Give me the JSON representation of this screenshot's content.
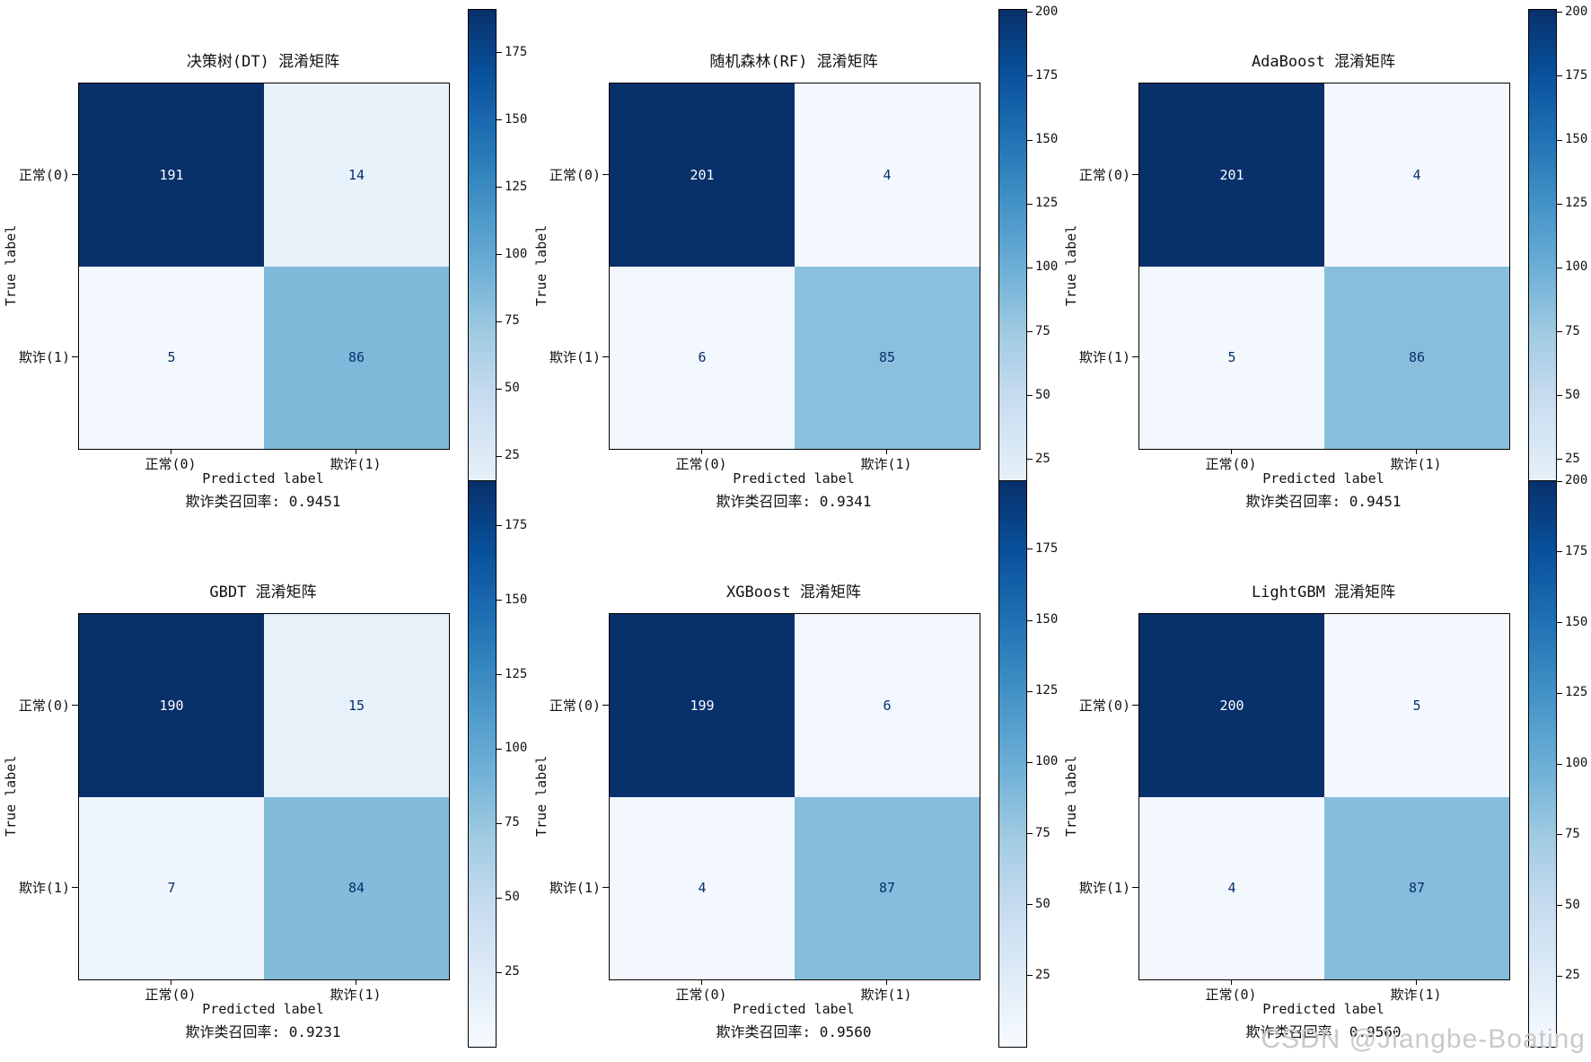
{
  "watermark": "CSDN @Jiangbe-Boating",
  "colors": {
    "cmap_low": "#f7fbff",
    "cmap_high": "#08306b",
    "cell_text_dark": "#08306b",
    "cell_text_light": "#ffffff",
    "watermark": "#c9c9c9"
  },
  "chart_data": [
    {
      "type": "heatmap",
      "title": "决策树(DT) 混淆矩阵",
      "xlabel": "Predicted label",
      "ylabel": "True label",
      "x_ticks": [
        "正常(0)",
        "欺诈(1)"
      ],
      "y_ticks": [
        "正常(0)",
        "欺诈(1)"
      ],
      "matrix": [
        [
          191,
          14
        ],
        [
          5,
          86
        ]
      ],
      "vmax": 191,
      "colorbar_ticks": [
        25,
        50,
        75,
        100,
        125,
        150,
        175
      ],
      "colormap": "Blues",
      "footnote": "欺诈类召回率: 0.9451"
    },
    {
      "type": "heatmap",
      "title": "随机森林(RF) 混淆矩阵",
      "xlabel": "Predicted label",
      "ylabel": "True label",
      "x_ticks": [
        "正常(0)",
        "欺诈(1)"
      ],
      "y_ticks": [
        "正常(0)",
        "欺诈(1)"
      ],
      "matrix": [
        [
          201,
          4
        ],
        [
          6,
          85
        ]
      ],
      "vmax": 201,
      "colorbar_ticks": [
        25,
        50,
        75,
        100,
        125,
        150,
        175,
        200
      ],
      "colormap": "Blues",
      "footnote": "欺诈类召回率: 0.9341"
    },
    {
      "type": "heatmap",
      "title": "AdaBoost 混淆矩阵",
      "xlabel": "Predicted label",
      "ylabel": "True label",
      "x_ticks": [
        "正常(0)",
        "欺诈(1)"
      ],
      "y_ticks": [
        "正常(0)",
        "欺诈(1)"
      ],
      "matrix": [
        [
          201,
          4
        ],
        [
          5,
          86
        ]
      ],
      "vmax": 201,
      "colorbar_ticks": [
        25,
        50,
        75,
        100,
        125,
        150,
        175,
        200
      ],
      "colormap": "Blues",
      "footnote": "欺诈类召回率: 0.9451"
    },
    {
      "type": "heatmap",
      "title": "GBDT 混淆矩阵",
      "xlabel": "Predicted label",
      "ylabel": "True label",
      "x_ticks": [
        "正常(0)",
        "欺诈(1)"
      ],
      "y_ticks": [
        "正常(0)",
        "欺诈(1)"
      ],
      "matrix": [
        [
          190,
          15
        ],
        [
          7,
          84
        ]
      ],
      "vmax": 190,
      "colorbar_ticks": [
        25,
        50,
        75,
        100,
        125,
        150,
        175
      ],
      "colormap": "Blues",
      "footnote": "欺诈类召回率: 0.9231"
    },
    {
      "type": "heatmap",
      "title": "XGBoost 混淆矩阵",
      "xlabel": "Predicted label",
      "ylabel": "True label",
      "x_ticks": [
        "正常(0)",
        "欺诈(1)"
      ],
      "y_ticks": [
        "正常(0)",
        "欺诈(1)"
      ],
      "matrix": [
        [
          199,
          6
        ],
        [
          4,
          87
        ]
      ],
      "vmax": 199,
      "colorbar_ticks": [
        25,
        50,
        75,
        100,
        125,
        150,
        175
      ],
      "colormap": "Blues",
      "footnote": "欺诈类召回率: 0.9560"
    },
    {
      "type": "heatmap",
      "title": "LightGBM 混淆矩阵",
      "xlabel": "Predicted label",
      "ylabel": "True label",
      "x_ticks": [
        "正常(0)",
        "欺诈(1)"
      ],
      "y_ticks": [
        "正常(0)",
        "欺诈(1)"
      ],
      "matrix": [
        [
          200,
          5
        ],
        [
          4,
          87
        ]
      ],
      "vmax": 200,
      "colorbar_ticks": [
        25,
        50,
        75,
        100,
        125,
        150,
        175,
        200
      ],
      "colormap": "Blues",
      "footnote": "欺诈类召回率: 0.9560"
    }
  ]
}
